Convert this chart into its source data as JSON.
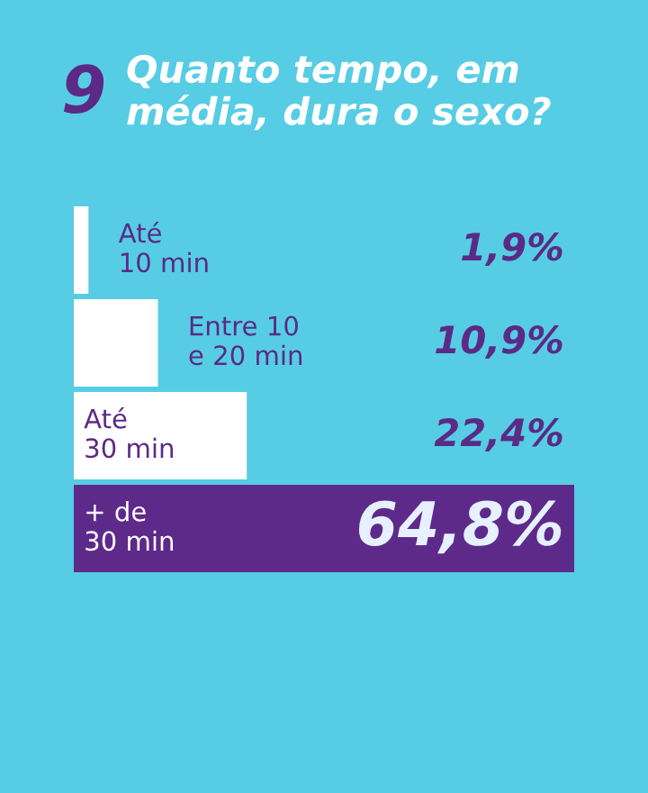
{
  "chart_data": {
    "type": "bar",
    "orientation": "horizontal",
    "title": "Quanto tempo, em média, dura o sexo?",
    "annotations": [
      "9"
    ],
    "categories": [
      "Até\n10 min",
      "Entre 10\ne 20 min",
      "Até\n30 min",
      "+ de\n30 min"
    ],
    "values": [
      1.9,
      10.9,
      22.4,
      64.8
    ],
    "value_labels": [
      "1,9%",
      "10,9%",
      "22,4%",
      "64,8%"
    ],
    "colors": [
      "#ffffff",
      "#ffffff",
      "#ffffff",
      "#5e2a8a"
    ],
    "legend": false
  }
}
